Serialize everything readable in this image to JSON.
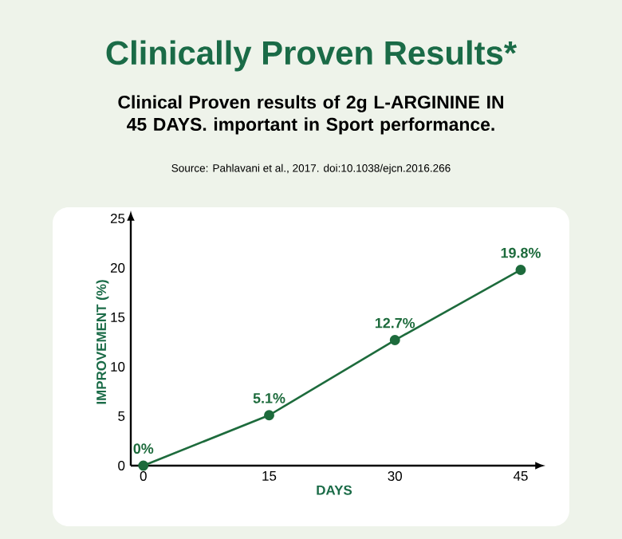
{
  "chart_data": {
    "type": "line",
    "title": "Clinically Proven Results*",
    "subtitle": "Clinical Proven results of 2g L-ARGININE IN 45 DAYS. important in Sport performance.",
    "annotations": [
      "Source: Pahlavani et al., 2017. doi:10.1038/ejcn.2016.266"
    ],
    "xlabel": "DAYS",
    "ylabel": "IMPROVEMENT (%)",
    "x": [
      0,
      15,
      30,
      45
    ],
    "values": [
      0,
      5.1,
      12.7,
      19.8
    ],
    "value_labels": [
      "0%",
      "5.1%",
      "12.7%",
      "19.8%"
    ],
    "color": "#1d6b3c",
    "marker": "circle",
    "line_style": "solid",
    "grid": false,
    "xlim": [
      -1.5,
      47
    ],
    "ylim": [
      0,
      25
    ],
    "xticks": [
      0,
      15,
      30,
      45
    ],
    "yticks": [
      0,
      5,
      10,
      15,
      20,
      25
    ]
  }
}
